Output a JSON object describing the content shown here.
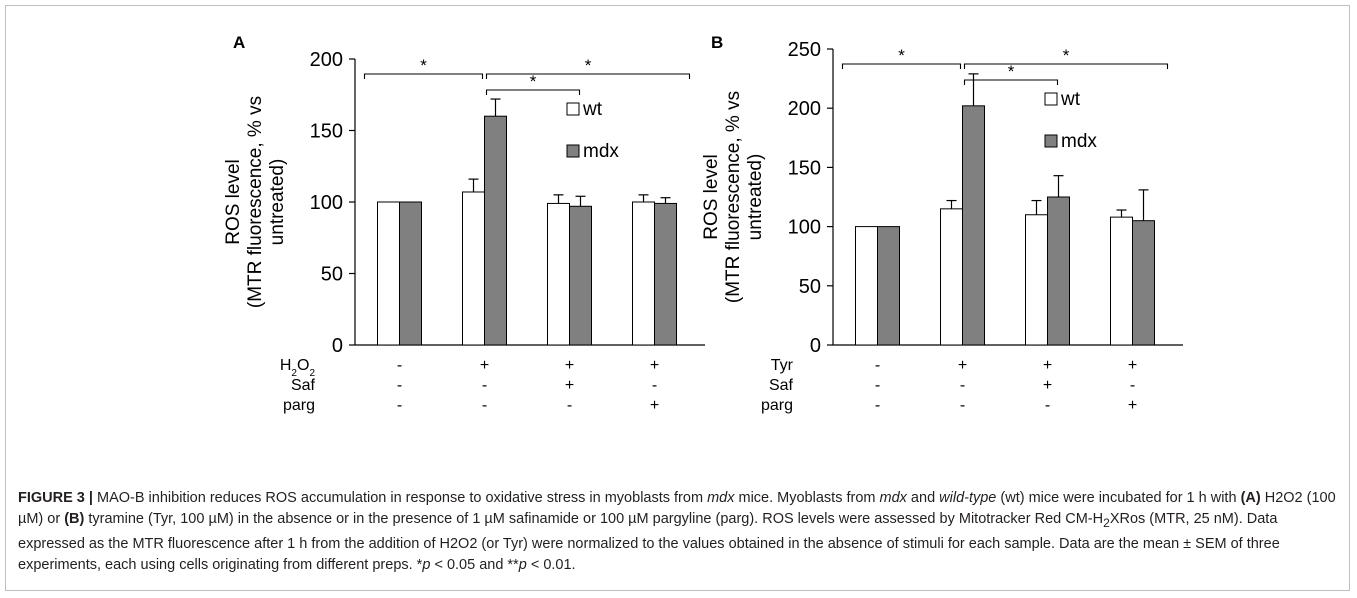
{
  "chart_data": [
    {
      "type": "bar",
      "panel_label": "A",
      "ylabel": [
        "ROS level",
        "(MTR fluorescence, % vs",
        "untreated)"
      ],
      "ylim": [
        0,
        200
      ],
      "yticks": [
        0,
        50,
        100,
        150,
        200
      ],
      "grid": false,
      "legend_position": "upper-right",
      "series": [
        {
          "name": "wt",
          "color": "#ffffff",
          "values": [
            100,
            107,
            99,
            100
          ],
          "errors": [
            0,
            9,
            6,
            5
          ]
        },
        {
          "name": "mdx",
          "color": "#808080",
          "values": [
            100,
            160,
            97,
            99
          ],
          "errors": [
            0,
            12,
            7,
            4
          ]
        }
      ],
      "treatment_rows": [
        {
          "label": "H2O2",
          "label_html": "H<tspan baseline-shift='sub' font-size='10'>2</tspan>O<tspan baseline-shift='sub' font-size='10'>2</tspan>",
          "marks": [
            "-",
            "+",
            "+",
            "+"
          ]
        },
        {
          "label": "Saf",
          "marks": [
            "-",
            "-",
            "+",
            "-"
          ]
        },
        {
          "label": "parg",
          "marks": [
            "-",
            "-",
            "-",
            "+"
          ]
        }
      ],
      "significance": [
        {
          "from": 0,
          "to": 1,
          "text": "*"
        },
        {
          "from": 1,
          "to": 2,
          "text": "*"
        },
        {
          "from": 1,
          "to": 3,
          "text": "*"
        }
      ]
    },
    {
      "type": "bar",
      "panel_label": "B",
      "ylabel": [
        "ROS level",
        "(MTR fluorescence, % vs",
        "untreated)"
      ],
      "ylim": [
        0,
        250
      ],
      "yticks": [
        0,
        50,
        100,
        150,
        200,
        250
      ],
      "grid": false,
      "legend_position": "upper-right",
      "series": [
        {
          "name": "wt",
          "color": "#ffffff",
          "values": [
            100,
            115,
            110,
            108
          ],
          "errors": [
            0,
            7,
            12,
            6
          ]
        },
        {
          "name": "mdx",
          "color": "#808080",
          "values": [
            100,
            202,
            125,
            105
          ],
          "errors": [
            0,
            27,
            18,
            26
          ]
        }
      ],
      "treatment_rows": [
        {
          "label": "Tyr",
          "marks": [
            "-",
            "+",
            "+",
            "+"
          ]
        },
        {
          "label": "Saf",
          "marks": [
            "-",
            "-",
            "+",
            "-"
          ]
        },
        {
          "label": "parg",
          "marks": [
            "-",
            "-",
            "-",
            "+"
          ]
        }
      ],
      "significance": [
        {
          "from": 0,
          "to": 1,
          "text": "*"
        },
        {
          "from": 1,
          "to": 2,
          "text": "*"
        },
        {
          "from": 1,
          "to": 3,
          "text": "*"
        }
      ]
    }
  ],
  "caption": {
    "label": "FIGURE 3 |",
    "parts": [
      {
        "t": " MAO-B inhibition reduces ROS accumulation in response to oxidative stress in myoblasts from "
      },
      {
        "t": "mdx",
        "s": "i"
      },
      {
        "t": " mice. Myoblasts from "
      },
      {
        "t": "mdx",
        "s": "i"
      },
      {
        "t": " and "
      },
      {
        "t": "wild-type",
        "s": "i"
      },
      {
        "t": " (wt) mice were incubated for 1 h with "
      },
      {
        "t": "(A)",
        "s": "b"
      },
      {
        "t": " H2O2 (100 µM) or "
      },
      {
        "t": "(B)",
        "s": "b"
      },
      {
        "t": " tyramine (Tyr, 100 µM) in the absence or in the presence of 1 µM safinamide or 100 µM pargyline (parg). ROS levels were assessed by Mitotracker Red CM-H"
      },
      {
        "t": "2",
        "s": "sub"
      },
      {
        "t": "XRos (MTR, 25 nM). Data expressed as the MTR fluorescence after 1 h from the addition of H2O2 (or Tyr) were normalized to the values obtained in the absence of stimuli for each sample. Data are the mean ± SEM of three experiments, each using cells originating from different preps. *"
      },
      {
        "t": "p",
        "s": "i"
      },
      {
        "t": " < 0.05 and **"
      },
      {
        "t": "p",
        "s": "i"
      },
      {
        "t": " < 0.01."
      }
    ]
  }
}
